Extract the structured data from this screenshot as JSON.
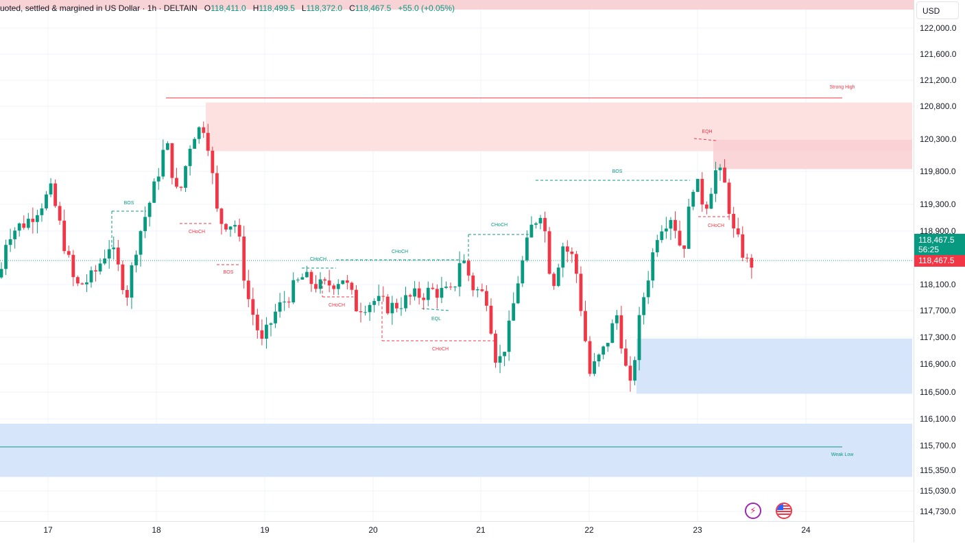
{
  "legend": {
    "symbol_text": "uoted, settled & margined in US Dollar · 1h · DELTAIN",
    "open_label": "O",
    "open": "118,411.0",
    "high_label": "H",
    "high": "118,499.5",
    "low_label": "L",
    "low": "118,372.0",
    "close_label": "C",
    "close": "118,467.5",
    "change": "+55.0 (+0.05%)"
  },
  "currency": "USD",
  "price_axis": {
    "ticks": [
      "122,000.0",
      "121,600.0",
      "121,200.0",
      "120,800.0",
      "120,300.0",
      "119,800.0",
      "119,300.0",
      "118,900.0",
      "118,100.0",
      "117,700.0",
      "117,300.0",
      "116,900.0",
      "116,500.0",
      "116,100.0",
      "115,700.0",
      "115,350.0",
      "115,030.0",
      "114,730.0"
    ]
  },
  "time_axis": {
    "ticks": [
      "17",
      "18",
      "19",
      "20",
      "21",
      "22",
      "23",
      "24"
    ]
  },
  "last_price": {
    "price": "118,467.5",
    "countdown": "56:25",
    "bid_price": "118,467.5"
  },
  "annotations": {
    "strong_high": "Strong High",
    "weak_low": "Weak Low",
    "eqh": "EQH",
    "eql": "EQL",
    "bos": "BOS",
    "choch": "CHoCH"
  },
  "colors": {
    "up": "#089981",
    "down": "#f23645",
    "supply_zone": "#fde0e0",
    "demand_zone": "#d7e5fb"
  },
  "icons": {
    "flash": "lightning-icon",
    "flag": "us-flag-icon"
  },
  "chart_data": {
    "type": "candlestick",
    "timeframe": "1h",
    "x_labels": [
      "17",
      "18",
      "19",
      "20",
      "21",
      "22",
      "23",
      "24"
    ],
    "y_range": [
      114600,
      122300
    ],
    "last_close": 118467.5,
    "strong_high": 120950,
    "weak_low": 115700,
    "supply_zones": [
      [
        120150,
        120880
      ],
      [
        119880,
        120320
      ]
    ],
    "demand_zones": [
      [
        116500,
        117330
      ],
      [
        115250,
        116050
      ]
    ]
  }
}
